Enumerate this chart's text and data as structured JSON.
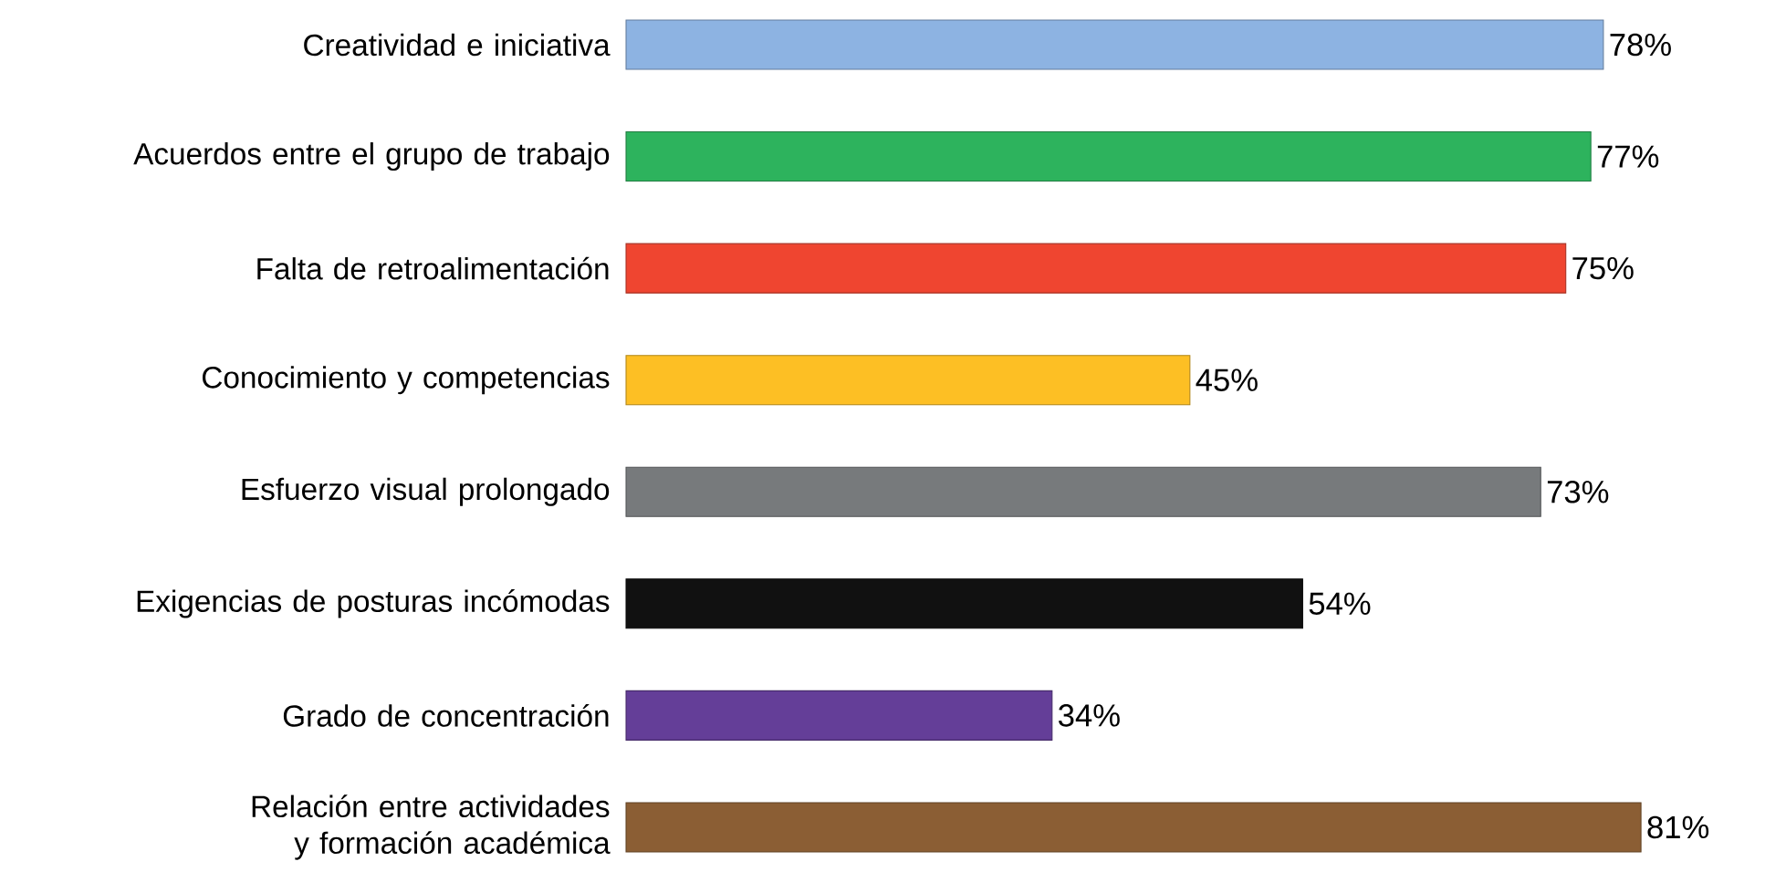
{
  "chart_data": {
    "type": "bar",
    "orientation": "horizontal",
    "categories": [
      "Creatividad e iniciativa",
      "Acuerdos entre el grupo de trabajo",
      "Falta de retroalimentación",
      "Conocimiento y competencias",
      "Esfuerzo visual prolongado",
      "Exigencias de posturas incómodas",
      "Grado de concentración",
      "Relación entre actividades y formación académica"
    ],
    "values": [
      78,
      77,
      75,
      45,
      73,
      54,
      34,
      81
    ],
    "value_labels": [
      "78%",
      "77%",
      "75%",
      "45%",
      "73%",
      "54%",
      "34%",
      "81%"
    ],
    "colors": [
      "#8db3e2",
      "#2db35d",
      "#ef4530",
      "#fdbf24",
      "#777a7c",
      "#111111",
      "#643e98",
      "#8b5e34"
    ]
  }
}
